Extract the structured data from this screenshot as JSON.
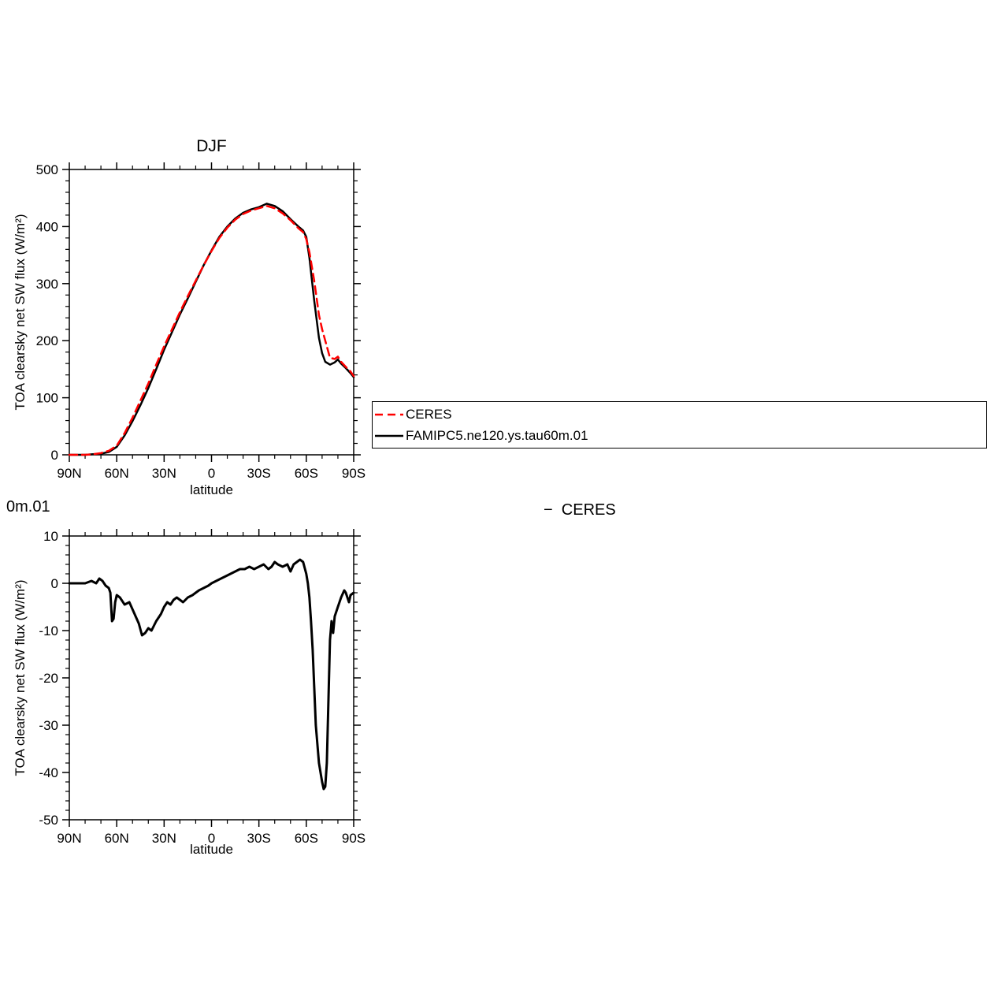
{
  "colors": {
    "ceres": "#ff0000",
    "model": "#000000",
    "axis": "#000000",
    "background": "#ffffff"
  },
  "chart_data": [
    {
      "type": "line",
      "title": "DJF",
      "xlabel": "latitude",
      "ylabel": "TOA clearsky net SW flux (W/m²)",
      "xlim": [
        90,
        -90
      ],
      "ylim": [
        0,
        500
      ],
      "xticks": [
        90,
        60,
        30,
        0,
        -30,
        -60,
        -90
      ],
      "xtick_labels": [
        "90N",
        "60N",
        "30N",
        "0",
        "30S",
        "60S",
        "90S"
      ],
      "yticks": [
        0,
        100,
        200,
        300,
        400,
        500
      ],
      "ytick_labels": [
        "0",
        "100",
        "200",
        "300",
        "400",
        "500"
      ],
      "x_minor_step": 10,
      "y_minor_step": 20,
      "legend_position": "right",
      "x": [
        90,
        85,
        80,
        75,
        70,
        65,
        60,
        55,
        50,
        45,
        40,
        35,
        30,
        25,
        20,
        15,
        10,
        5,
        0,
        -5,
        -10,
        -15,
        -20,
        -25,
        -30,
        -35,
        -40,
        -45,
        -50,
        -55,
        -58,
        -60,
        -62,
        -65,
        -68,
        -70,
        -72,
        -75,
        -78,
        -80,
        -82,
        -85,
        -88,
        -90
      ],
      "series": [
        {
          "name": "CERES",
          "color": "#ff0000",
          "dash": [
            10,
            6
          ],
          "width": 2.5,
          "values": [
            0,
            0,
            0,
            1,
            3,
            7,
            16,
            38,
            65,
            95,
            125,
            158,
            190,
            220,
            250,
            278,
            305,
            332,
            357,
            380,
            398,
            412,
            422,
            428,
            432,
            436,
            432,
            423,
            411,
            397,
            390,
            378,
            355,
            305,
            245,
            220,
            200,
            170,
            168,
            172,
            163,
            154,
            146,
            138
          ]
        },
        {
          "name": "FAMIPC5.ne120.ys.tau60m.01",
          "color": "#000000",
          "dash": null,
          "width": 2.5,
          "values": [
            0,
            0,
            0,
            1,
            2,
            5,
            14,
            34,
            59,
            87,
            117,
            150,
            184,
            215,
            246,
            274,
            303,
            332,
            358,
            382,
            400,
            414,
            424,
            430,
            434,
            440,
            436,
            427,
            413,
            400,
            393,
            382,
            345,
            270,
            205,
            178,
            163,
            158,
            162,
            167,
            160,
            152,
            143,
            136
          ]
        }
      ]
    },
    {
      "type": "line",
      "title_fragment_left": "0m.01",
      "title_fragment_right": "−  CERES",
      "xlabel": "latitude",
      "ylabel": "TOA clearsky net SW flux (W/m²)",
      "xlim": [
        90,
        -90
      ],
      "ylim": [
        -50,
        10
      ],
      "xticks": [
        90,
        60,
        30,
        0,
        -30,
        -60,
        -90
      ],
      "xtick_labels": [
        "90N",
        "60N",
        "30N",
        "0",
        "30S",
        "60S",
        "90S"
      ],
      "yticks": [
        10,
        0,
        -10,
        -20,
        -30,
        -40,
        -50
      ],
      "ytick_labels": [
        "10",
        "0",
        "-10",
        "-20",
        "-30",
        "-40",
        "-50"
      ],
      "x_minor_step": 10,
      "y_minor_step": 2,
      "x": [
        90,
        85,
        80,
        76,
        73,
        71,
        69,
        67,
        65,
        64,
        63,
        62,
        61,
        60,
        58,
        55,
        52,
        50,
        48,
        46,
        44,
        42,
        40,
        38,
        35,
        32,
        30,
        28,
        26,
        24,
        22,
        20,
        18,
        15,
        12,
        10,
        8,
        5,
        2,
        0,
        -3,
        -6,
        -9,
        -12,
        -15,
        -18,
        -21,
        -24,
        -27,
        -30,
        -33,
        -36,
        -38,
        -40,
        -42,
        -45,
        -48,
        -50,
        -52,
        -54,
        -56,
        -58,
        -60,
        -61,
        -62,
        -63,
        -64,
        -65,
        -66,
        -68,
        -70,
        -71,
        -72,
        -73,
        -74,
        -75,
        -76,
        -77,
        -78,
        -80,
        -82,
        -84,
        -85,
        -87,
        -88,
        -90
      ],
      "series": [
        {
          "name": "FAMIPC5.ne120.ys.tau60m.01 − CERES",
          "color": "#000000",
          "dash": null,
          "width": 3,
          "values": [
            0,
            0,
            0,
            0.5,
            0,
            1,
            0.5,
            -0.5,
            -1,
            -2,
            -8,
            -7.5,
            -4,
            -2.5,
            -3,
            -4.5,
            -4,
            -5.5,
            -7,
            -8.5,
            -11,
            -10.5,
            -9.5,
            -10,
            -8,
            -6.5,
            -5,
            -4,
            -4.5,
            -3.5,
            -3,
            -3.5,
            -4,
            -3,
            -2.5,
            -2,
            -1.5,
            -1,
            -0.5,
            0,
            0.5,
            1,
            1.5,
            2,
            2.5,
            3,
            3,
            3.5,
            3,
            3.5,
            4,
            3,
            3.5,
            4.5,
            4,
            3.5,
            4,
            2.5,
            4,
            4.5,
            5,
            4.5,
            2,
            0,
            -3,
            -8,
            -14,
            -22,
            -30,
            -38,
            -42,
            -43.5,
            -43,
            -38,
            -25,
            -12,
            -8,
            -10.5,
            -7,
            -5,
            -3,
            -1.5,
            -2,
            -4,
            -2.5,
            -2
          ]
        }
      ]
    }
  ]
}
